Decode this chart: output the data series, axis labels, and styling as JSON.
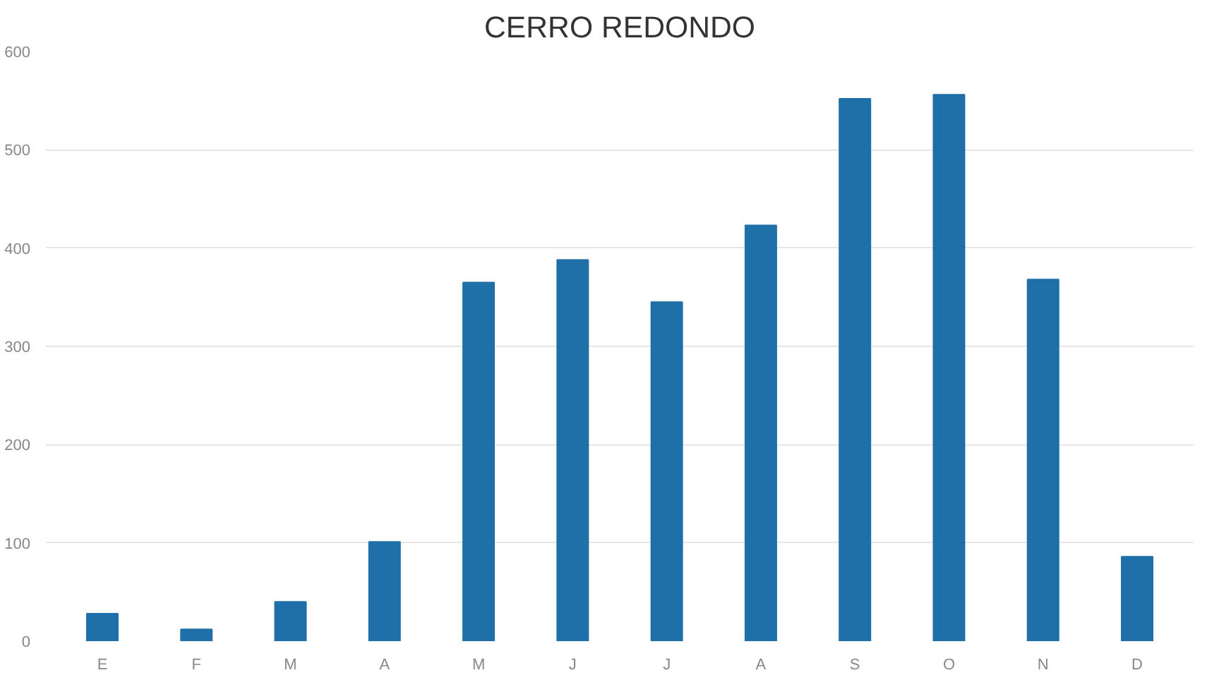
{
  "chart_data": {
    "type": "bar",
    "title": "CERRO REDONDO",
    "categories": [
      "E",
      "F",
      "M",
      "A",
      "M",
      "J",
      "J",
      "A",
      "S",
      "O",
      "N",
      "D"
    ],
    "values": [
      28,
      12,
      40,
      101,
      365,
      388,
      345,
      423,
      552,
      556,
      368,
      86
    ],
    "color": "#1f6fa8",
    "ylim": [
      0,
      600
    ],
    "yticks": [
      0,
      100,
      200,
      300,
      400,
      500,
      600
    ],
    "grid": "y"
  }
}
